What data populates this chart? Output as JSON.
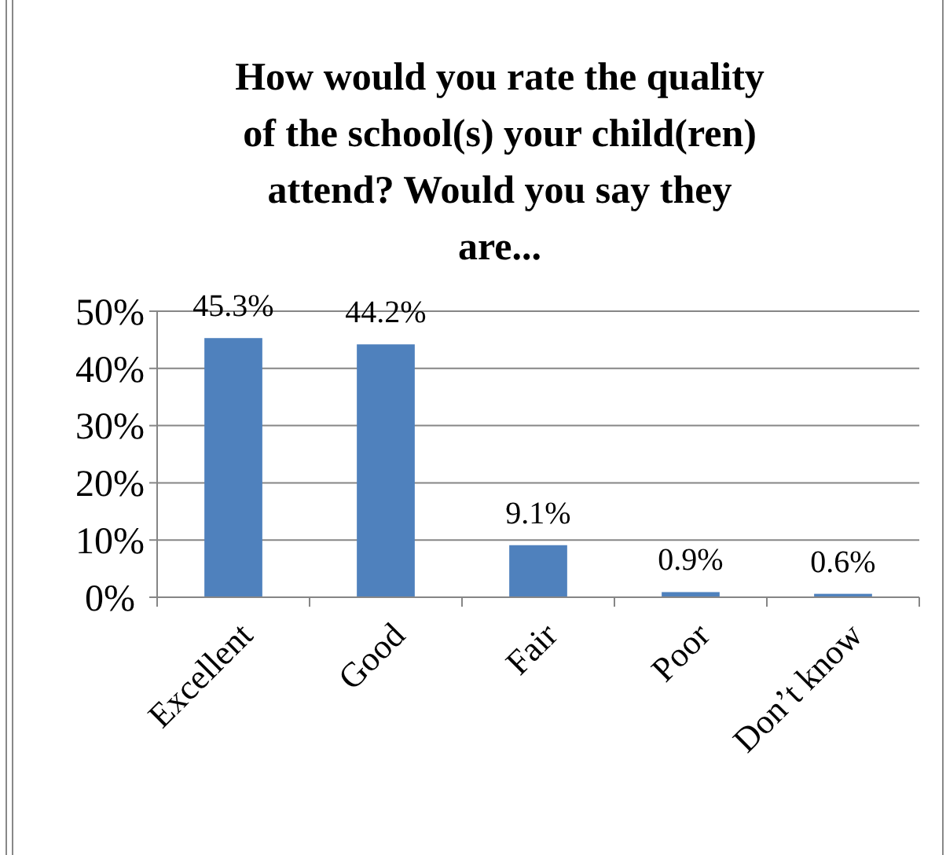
{
  "chart_data": {
    "type": "bar",
    "title": "How would you rate the quality of the school(s) your child(ren) attend?  Would you say they are...",
    "categories": [
      "Excellent",
      "Good",
      "Fair",
      "Poor",
      "Don’t know"
    ],
    "values": [
      45.3,
      44.2,
      9.1,
      0.9,
      0.6
    ],
    "value_labels": [
      "45.3%",
      "44.2%",
      "9.1%",
      "0.9%",
      "0.6%"
    ],
    "color": "#4f81bd",
    "ylim": [
      0,
      50
    ],
    "yticks": [
      {
        "value": 0,
        "label": "0%"
      },
      {
        "value": 10,
        "label": "10%"
      },
      {
        "value": 20,
        "label": "20%"
      },
      {
        "value": 30,
        "label": "30%"
      },
      {
        "value": 40,
        "label": "40%"
      },
      {
        "value": 50,
        "label": "50%"
      }
    ],
    "grid": "y"
  }
}
